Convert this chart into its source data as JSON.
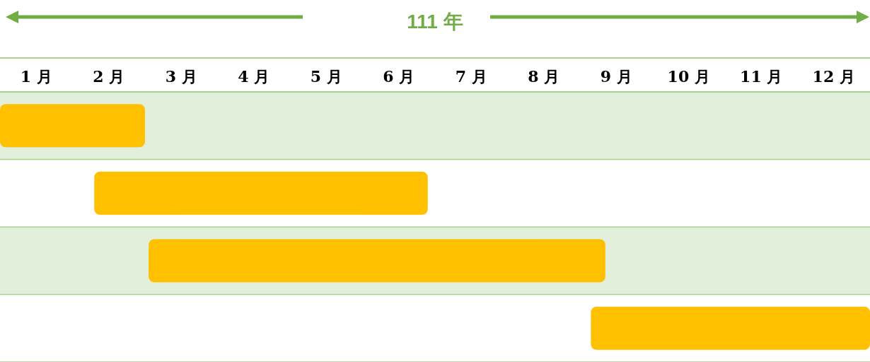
{
  "chart_data": {
    "type": "bar",
    "orientation": "horizontal",
    "title": "111 年",
    "categories": [
      null,
      null,
      null,
      null
    ],
    "base": [
      0,
      1.3,
      2.05,
      8.15
    ],
    "values": [
      2,
      4.6,
      6.3,
      3.85
    ],
    "color": "#ffc000",
    "xlim": [
      0,
      12
    ],
    "xticks": [
      {
        "value": 0.5,
        "label": "1 月"
      },
      {
        "value": 1.5,
        "label": "2 月"
      },
      {
        "value": 2.5,
        "label": "3 月"
      },
      {
        "value": 3.5,
        "label": "4 月"
      },
      {
        "value": 4.5,
        "label": "5 月"
      },
      {
        "value": 5.5,
        "label": "6 月"
      },
      {
        "value": 6.5,
        "label": "7 月"
      },
      {
        "value": 7.5,
        "label": "8 月"
      },
      {
        "value": 8.5,
        "label": "9 月"
      },
      {
        "value": 9.5,
        "label": "10 月"
      },
      {
        "value": 10.5,
        "label": "11 月"
      },
      {
        "value": 11.5,
        "label": "12 月"
      }
    ],
    "tick_labels": "x"
  }
}
